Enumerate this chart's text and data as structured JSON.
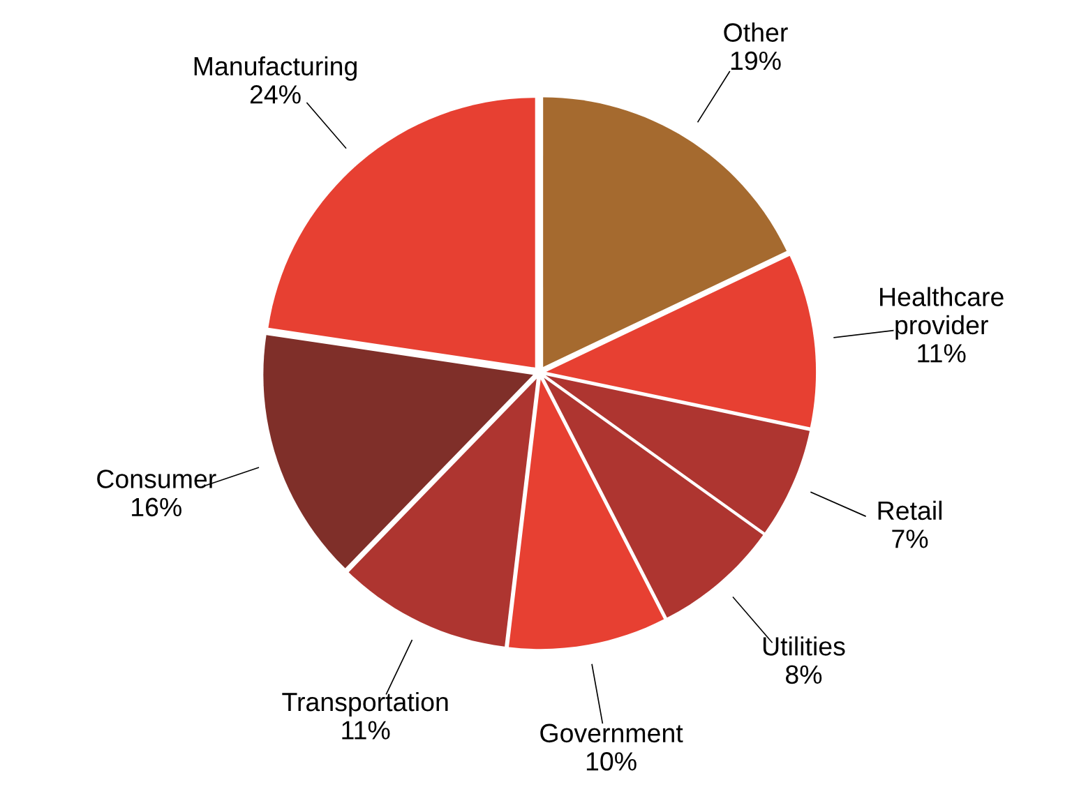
{
  "chart_data": {
    "type": "pie",
    "categories": [
      "Other",
      "Healthcare\nprovider",
      "Retail",
      "Utilities",
      "Government",
      "Transportation",
      "Consumer",
      "Manufacturing"
    ],
    "values": [
      19,
      11,
      7,
      8,
      10,
      11,
      16,
      24
    ],
    "value_labels": [
      "19%",
      "11%",
      "7%",
      "8%",
      "10%",
      "11%",
      "16%",
      "24%"
    ],
    "colors": [
      "#a56a2f",
      "#e74032",
      "#ae3530",
      "#ae3530",
      "#e74032",
      "#ae3530",
      "#7f2f29",
      "#e74032"
    ]
  }
}
